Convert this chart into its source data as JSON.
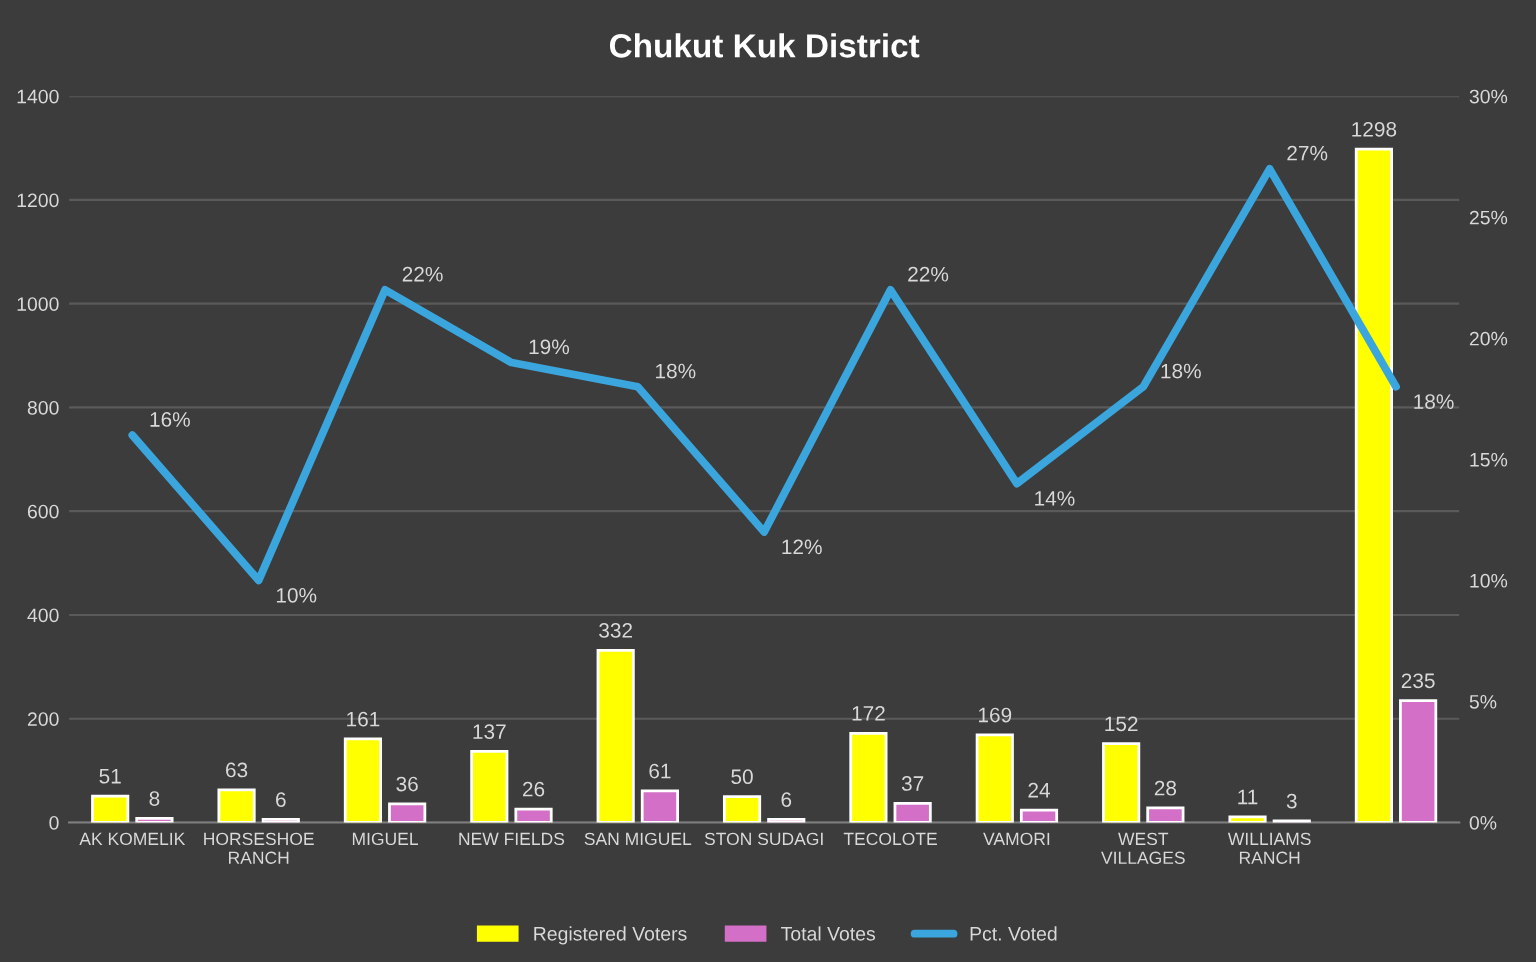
{
  "chart_data": {
    "type": "bar",
    "title": "Chukut Kuk District",
    "categories": [
      "AK KOMELIK",
      "HORSESHOE\nRANCH",
      "MIGUEL",
      "NEW FIELDS",
      "SAN MIGUEL",
      "STON SUDAGI",
      "TECOLOTE",
      "VAMORI",
      "WEST\nVILLAGES",
      "WILLIAMS\nRANCH",
      null
    ],
    "series": [
      {
        "name": "Registered Voters",
        "color": "#ffff00",
        "values": [
          51,
          63,
          161,
          137,
          332,
          50,
          172,
          169,
          152,
          11,
          1298
        ]
      },
      {
        "name": "Total Votes",
        "color": "#d36fc6",
        "values": [
          8,
          6,
          36,
          26,
          61,
          6,
          37,
          24,
          28,
          3,
          235
        ]
      },
      {
        "name": "Pct. Voted",
        "type": "line",
        "axis": "y2",
        "color": "#3aa6dd",
        "values": [
          16,
          10,
          22,
          19,
          18,
          12,
          22,
          14,
          18,
          27,
          18
        ],
        "value_labels": [
          "16%",
          "10%",
          "22%",
          "19%",
          "18%",
          "12%",
          "22%",
          "14%",
          "18%",
          "27%",
          "18%"
        ]
      }
    ],
    "ylim": [
      0,
      1400
    ],
    "yticks": [
      0,
      200,
      400,
      600,
      800,
      1000,
      1200,
      1400
    ],
    "y2lim": [
      0,
      30
    ],
    "y2ticks": [
      {
        "value": 0,
        "label": "0%"
      },
      {
        "value": 5,
        "label": "5%"
      },
      {
        "value": 10,
        "label": "10%"
      },
      {
        "value": 15,
        "label": "15%"
      },
      {
        "value": 20,
        "label": "20%"
      },
      {
        "value": 25,
        "label": "25%"
      },
      {
        "value": 30,
        "label": "30%"
      }
    ],
    "data_labels": true,
    "grid": "y",
    "legend": "bottom",
    "marker": "none",
    "line_style": "solid"
  }
}
